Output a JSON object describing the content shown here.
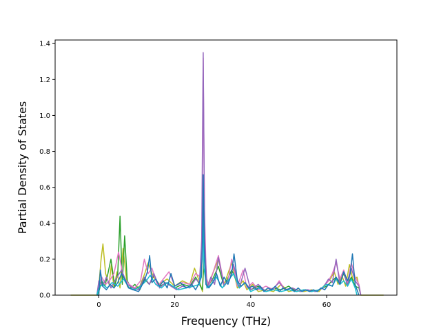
{
  "chart_data": {
    "type": "line",
    "title": "",
    "xlabel": "Frequency (THz)",
    "ylabel": "Partial Density of States",
    "xlim": [
      -11.5,
      78.5
    ],
    "ylim": [
      0.0,
      1.42
    ],
    "xticks": [
      0,
      20,
      40,
      60
    ],
    "yticks": [
      0.0,
      0.2,
      0.4,
      0.6,
      0.8,
      1.0,
      1.2,
      1.4
    ],
    "xtick_labels": [
      "0",
      "20",
      "40",
      "60"
    ],
    "ytick_labels": [
      "0.0",
      "0.2",
      "0.4",
      "0.6",
      "0.8",
      "1.0",
      "1.2",
      "1.4"
    ],
    "grid": false,
    "legend": "none",
    "series": [
      {
        "color": "#bcbd22",
        "x": [
          -7.4,
          -0.5,
          0,
          0.6,
          1.1,
          1.8,
          2.7,
          3.3,
          4.0,
          4.8,
          5.6,
          6.4,
          7.5,
          9.0,
          10.8,
          12.1,
          13.0,
          14.4,
          16.0,
          18.0,
          20.0,
          22.0,
          24.0,
          25.2,
          26.6,
          27.3,
          27.8,
          28.5,
          30.0,
          31.5,
          33.0,
          35.0,
          36.5,
          38.0,
          39.0,
          40.5,
          42.0,
          44.0,
          46.0,
          48.0,
          50.0,
          52.0,
          54.0,
          56.0,
          58.0,
          60.0,
          61.0,
          62.0,
          63.0,
          64.0,
          65.0,
          66.0,
          67.0,
          68.0,
          69.0,
          75.0
        ],
        "values": [
          0.0,
          0.0,
          0.05,
          0.2,
          0.285,
          0.12,
          0.06,
          0.17,
          0.04,
          0.13,
          0.04,
          0.26,
          0.05,
          0.03,
          0.05,
          0.12,
          0.18,
          0.1,
          0.06,
          0.09,
          0.05,
          0.08,
          0.06,
          0.15,
          0.07,
          0.02,
          0.28,
          0.05,
          0.12,
          0.2,
          0.06,
          0.18,
          0.04,
          0.08,
          0.03,
          0.06,
          0.02,
          0.03,
          0.02,
          0.06,
          0.02,
          0.03,
          0.02,
          0.03,
          0.02,
          0.07,
          0.09,
          0.13,
          0.06,
          0.11,
          0.05,
          0.17,
          0.08,
          0.1,
          0.0,
          0.0
        ]
      },
      {
        "color": "#2ca02c",
        "x": [
          -0.5,
          0,
          0.8,
          1.6,
          2.4,
          3.2,
          4.2,
          5.0,
          5.6,
          6.2,
          6.8,
          7.5,
          8.5,
          9.5,
          10.8,
          12.0,
          13.3,
          14.5,
          16.0,
          18.0,
          20.0,
          22.0,
          24.0,
          25.5,
          26.5,
          27.3,
          27.8,
          28.5,
          30.0,
          31.5,
          33.0,
          35.0,
          37.0,
          38.5,
          40.0,
          42.0,
          44.0,
          46.0,
          48.0,
          50.0,
          52.0,
          54.0,
          56.0,
          58.0,
          60.0,
          61.5,
          62.5,
          63.5,
          64.5,
          65.5,
          66.5,
          67.5,
          68.5,
          69.0
        ],
        "values": [
          0.0,
          0.02,
          0.08,
          0.05,
          0.12,
          0.2,
          0.05,
          0.12,
          0.44,
          0.06,
          0.33,
          0.08,
          0.04,
          0.06,
          0.03,
          0.09,
          0.06,
          0.11,
          0.05,
          0.07,
          0.04,
          0.06,
          0.05,
          0.1,
          0.06,
          0.03,
          0.24,
          0.04,
          0.09,
          0.16,
          0.05,
          0.14,
          0.04,
          0.07,
          0.03,
          0.05,
          0.02,
          0.04,
          0.03,
          0.05,
          0.02,
          0.03,
          0.02,
          0.03,
          0.05,
          0.08,
          0.1,
          0.07,
          0.12,
          0.06,
          0.1,
          0.05,
          0.04,
          0.0
        ]
      },
      {
        "color": "#e377c2",
        "x": [
          -0.5,
          0,
          0.8,
          1.8,
          2.8,
          4.0,
          5.2,
          6.5,
          8.0,
          9.5,
          11.0,
          12.0,
          13.0,
          14.0,
          15.5,
          17.0,
          18.5,
          20.0,
          22.0,
          24.0,
          25.5,
          26.8,
          27.2,
          27.5,
          27.8,
          28.3,
          29.0,
          30.0,
          31.5,
          33.0,
          34.0,
          35.0,
          36.5,
          38.0,
          39.0,
          40.5,
          42.0,
          44.0,
          46.0,
          47.5,
          49.0,
          51.0,
          53.0,
          55.0,
          57.0,
          59.0,
          60.5,
          61.5,
          62.5,
          63.5,
          64.5,
          65.5,
          66.5,
          67.5,
          68.5,
          69.0
        ],
        "values": [
          0.0,
          0.05,
          0.1,
          0.06,
          0.08,
          0.12,
          0.24,
          0.1,
          0.06,
          0.04,
          0.08,
          0.2,
          0.12,
          0.15,
          0.05,
          0.09,
          0.13,
          0.05,
          0.07,
          0.06,
          0.12,
          0.1,
          0.4,
          1.32,
          0.5,
          0.1,
          0.05,
          0.12,
          0.22,
          0.06,
          0.08,
          0.2,
          0.05,
          0.14,
          0.04,
          0.07,
          0.03,
          0.05,
          0.03,
          0.08,
          0.03,
          0.04,
          0.02,
          0.03,
          0.02,
          0.04,
          0.08,
          0.12,
          0.18,
          0.09,
          0.14,
          0.07,
          0.18,
          0.1,
          0.06,
          0.0
        ]
      },
      {
        "color": "#9467bd",
        "x": [
          -0.5,
          0,
          1.0,
          2.0,
          3.2,
          4.5,
          6.0,
          7.5,
          9.0,
          10.5,
          12.0,
          13.3,
          14.5,
          16.0,
          17.5,
          19.0,
          20.5,
          22.0,
          24.0,
          25.5,
          26.5,
          27.1,
          27.5,
          27.9,
          28.5,
          29.5,
          30.5,
          31.5,
          33.0,
          34.5,
          35.5,
          37.0,
          38.5,
          40.0,
          42.0,
          44.0,
          46.0,
          47.5,
          49.0,
          51.0,
          53.0,
          55.0,
          57.0,
          59.0,
          60.5,
          61.5,
          62.5,
          63.5,
          64.5,
          65.5,
          66.5,
          67.5,
          68.5,
          69.0
        ],
        "values": [
          0.0,
          0.08,
          0.05,
          0.1,
          0.04,
          0.09,
          0.14,
          0.06,
          0.04,
          0.03,
          0.1,
          0.06,
          0.12,
          0.04,
          0.07,
          0.05,
          0.03,
          0.05,
          0.04,
          0.09,
          0.07,
          0.3,
          1.35,
          0.3,
          0.04,
          0.1,
          0.06,
          0.21,
          0.05,
          0.09,
          0.17,
          0.04,
          0.15,
          0.03,
          0.06,
          0.02,
          0.04,
          0.07,
          0.03,
          0.04,
          0.02,
          0.03,
          0.02,
          0.04,
          0.09,
          0.07,
          0.2,
          0.06,
          0.13,
          0.05,
          0.15,
          0.08,
          0.05,
          0.0
        ]
      },
      {
        "color": "#17becf",
        "x": [
          -0.5,
          0,
          1.0,
          2.2,
          3.5,
          5.0,
          6.5,
          8.0,
          9.5,
          11.0,
          12.5,
          13.5,
          15.0,
          16.5,
          18.0,
          19.5,
          21.0,
          23.0,
          25.0,
          26.5,
          27.3,
          27.5,
          27.7,
          28.5,
          29.5,
          31.0,
          32.5,
          34.0,
          35.5,
          37.0,
          38.5,
          40.0,
          42.0,
          44.0,
          46.0,
          48.0,
          50.0,
          52.0,
          54.0,
          56.0,
          58.0,
          60.0,
          61.5,
          62.5,
          63.5,
          64.5,
          65.5,
          66.5,
          67.5,
          68.0
        ],
        "values": [
          0.0,
          0.04,
          0.06,
          0.04,
          0.07,
          0.05,
          0.09,
          0.04,
          0.03,
          0.05,
          0.08,
          0.11,
          0.06,
          0.04,
          0.07,
          0.05,
          0.03,
          0.04,
          0.05,
          0.06,
          0.2,
          0.55,
          0.15,
          0.04,
          0.06,
          0.1,
          0.04,
          0.08,
          0.12,
          0.04,
          0.07,
          0.02,
          0.04,
          0.02,
          0.03,
          0.02,
          0.03,
          0.02,
          0.03,
          0.02,
          0.03,
          0.06,
          0.05,
          0.09,
          0.06,
          0.08,
          0.05,
          0.09,
          0.04,
          0.0
        ]
      },
      {
        "color": "#1f77b4",
        "x": [
          -0.5,
          0,
          0.4,
          1.0,
          2.0,
          3.0,
          4.0,
          5.0,
          6.0,
          6.8,
          7.8,
          9.0,
          10.5,
          12.0,
          12.8,
          13.4,
          14.0,
          15.0,
          16.0,
          17.0,
          18.0,
          19.0,
          20.0,
          21.5,
          23.0,
          24.5,
          25.5,
          26.5,
          27.0,
          27.3,
          27.5,
          27.8,
          28.2,
          29.0,
          30.0,
          31.0,
          32.0,
          33.0,
          34.0,
          35.0,
          35.6,
          36.5,
          37.5,
          38.5,
          39.5,
          40.5,
          41.5,
          42.5,
          43.5,
          44.5,
          45.5,
          46.5,
          47.5,
          48.5,
          49.5,
          50.5,
          51.5,
          52.5,
          53.5,
          54.5,
          55.5,
          56.5,
          57.5,
          58.5,
          59.5,
          60.5,
          61.5,
          62.5,
          63.5,
          64.5,
          65.5,
          66.2,
          66.8,
          67.5,
          68.0,
          68.5
        ],
        "values": [
          0.0,
          0.0,
          0.14,
          0.05,
          0.03,
          0.06,
          0.04,
          0.07,
          0.12,
          0.09,
          0.04,
          0.03,
          0.02,
          0.08,
          0.13,
          0.22,
          0.07,
          0.09,
          0.05,
          0.08,
          0.04,
          0.12,
          0.05,
          0.07,
          0.04,
          0.06,
          0.03,
          0.07,
          0.1,
          0.3,
          0.67,
          0.25,
          0.06,
          0.04,
          0.07,
          0.12,
          0.05,
          0.1,
          0.06,
          0.12,
          0.23,
          0.08,
          0.05,
          0.07,
          0.04,
          0.05,
          0.03,
          0.05,
          0.02,
          0.04,
          0.03,
          0.05,
          0.02,
          0.04,
          0.03,
          0.04,
          0.02,
          0.04,
          0.02,
          0.03,
          0.02,
          0.03,
          0.02,
          0.04,
          0.03,
          0.06,
          0.05,
          0.1,
          0.06,
          0.13,
          0.08,
          0.12,
          0.23,
          0.06,
          0.03,
          0.0
        ]
      }
    ]
  }
}
